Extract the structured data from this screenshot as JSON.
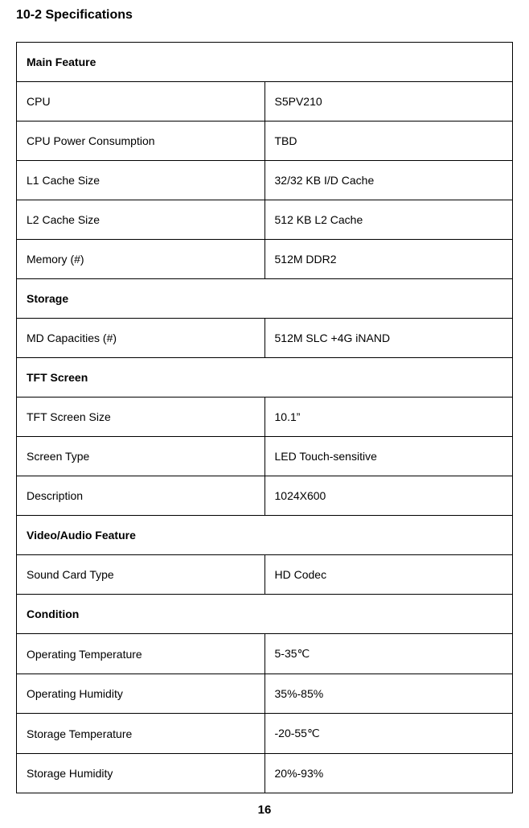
{
  "title": "10-2 Specifications",
  "page_number": "16",
  "colors": {
    "text": "#000000",
    "background": "#ffffff",
    "border": "#000000"
  },
  "table": {
    "sections": [
      {
        "header": "Main Feature",
        "rows": [
          {
            "label": "CPU",
            "value": "S5PV210"
          },
          {
            "label": "CPU Power Consumption",
            "value": "TBD"
          },
          {
            "label": "L1 Cache Size",
            "value": "32/32 KB I/D Cache"
          },
          {
            "label": "L2 Cache Size",
            "value": "512 KB L2 Cache"
          },
          {
            "label": "Memory (#)",
            "value": "512M DDR2"
          }
        ]
      },
      {
        "header": "Storage",
        "rows": [
          {
            "label": "MD Capacities (#)",
            "value": "512M SLC +4G iNAND"
          }
        ]
      },
      {
        "header": "TFT Screen",
        "rows": [
          {
            "label": "TFT Screen Size",
            "value": "10.1”"
          },
          {
            "label": "Screen Type",
            "value": "LED Touch-sensitive"
          },
          {
            "label": "Description",
            "value": "1024X600"
          }
        ]
      },
      {
        "header": "Video/Audio Feature",
        "rows": [
          {
            "label": "Sound Card Type",
            "value": "HD Codec"
          }
        ]
      },
      {
        "header": "Condition",
        "rows": [
          {
            "label": "Operating Temperature",
            "value": "5-35℃"
          },
          {
            "label": "Operating Humidity",
            "value": "35%-85%"
          },
          {
            "label": "Storage Temperature",
            "value": "-20-55℃"
          },
          {
            "label": "Storage Humidity",
            "value": "20%-93%"
          }
        ]
      }
    ]
  }
}
